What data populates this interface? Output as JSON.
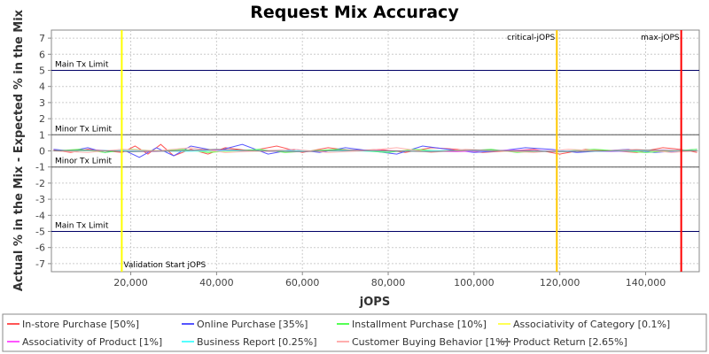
{
  "chart_data": {
    "type": "line",
    "title": "Request Mix Accuracy",
    "xlabel": "jOPS",
    "ylabel": "Actual % in the Mix - Expected % in the Mix",
    "xlim": [
      1500,
      152500
    ],
    "ylim": [
      -7.5,
      7.5
    ],
    "x_ticks": [
      20000,
      40000,
      60000,
      80000,
      100000,
      120000,
      140000
    ],
    "x_tick_labels": [
      "20,000",
      "40,000",
      "60,000",
      "80,000",
      "100,000",
      "120,000",
      "140,000"
    ],
    "y_ticks": [
      7,
      6,
      5,
      4,
      3,
      2,
      1,
      0,
      -1,
      -2,
      -3,
      -4,
      -5,
      -6,
      -7
    ],
    "y_tick_labels": [
      "7",
      "6",
      "5",
      "4",
      "3",
      "2",
      "1",
      "0",
      "-1",
      "-2",
      "-3",
      "-4",
      "-5",
      "-6",
      "-7"
    ],
    "grid": true,
    "legend_position": "bottom",
    "limit_lines": [
      {
        "label": "Main Tx Limit",
        "y": 5,
        "label_side": "above"
      },
      {
        "label": "Minor Tx Limit",
        "y": 1,
        "label_side": "above"
      },
      {
        "label": "Minor Tx Limit",
        "y": -1,
        "label_side": "above"
      },
      {
        "label": "Main Tx Limit",
        "y": -5,
        "label_side": "above"
      }
    ],
    "markers": [
      {
        "label": "Validation Start jOPS",
        "x": 17900,
        "color": "#ffff00",
        "label_pos": "bottom"
      },
      {
        "label": "critical-jOPS",
        "x": 119300,
        "color": "#ffc800",
        "label_pos": "top"
      },
      {
        "label": "max-jOPS",
        "x": 148300,
        "color": "#ff0000",
        "label_pos": "top"
      }
    ],
    "series": [
      {
        "name": "In-store Purchase [50%]",
        "color": "#ff5555",
        "x": [
          2000,
          6000,
          10000,
          14000,
          18000,
          21000,
          24000,
          27000,
          30000,
          34000,
          38000,
          42000,
          48000,
          54000,
          60000,
          66000,
          72000,
          78000,
          84000,
          90000,
          96000,
          102000,
          108000,
          114000,
          120000,
          126000,
          132000,
          138000,
          144000,
          148000,
          152000
        ],
        "y": [
          0.05,
          -0.1,
          0.1,
          0.0,
          -0.1,
          0.3,
          -0.2,
          0.4,
          -0.3,
          0.1,
          -0.2,
          0.2,
          0.0,
          0.3,
          -0.1,
          0.2,
          0.0,
          0.1,
          -0.1,
          0.2,
          0.1,
          -0.1,
          0.0,
          0.1,
          -0.2,
          0.1,
          0.0,
          -0.1,
          0.2,
          0.1,
          -0.1
        ]
      },
      {
        "name": "Online Purchase [35%]",
        "color": "#5555ff",
        "x": [
          2000,
          6000,
          10000,
          14000,
          18000,
          22000,
          26000,
          30000,
          34000,
          40000,
          46000,
          52000,
          58000,
          64000,
          70000,
          76000,
          82000,
          88000,
          94000,
          100000,
          106000,
          112000,
          118000,
          124000,
          130000,
          136000,
          142000,
          148000,
          152000
        ],
        "y": [
          0.1,
          0.0,
          0.2,
          -0.1,
          0.1,
          -0.4,
          0.2,
          -0.3,
          0.3,
          0.0,
          0.4,
          -0.2,
          0.1,
          -0.1,
          0.2,
          0.0,
          -0.2,
          0.3,
          0.1,
          -0.1,
          0.0,
          0.2,
          0.1,
          -0.1,
          0.0,
          0.1,
          -0.1,
          0.0,
          0.1
        ]
      },
      {
        "name": "Installment Purchase [10%]",
        "color": "#55ff55",
        "x": [
          2000,
          8000,
          14000,
          20000,
          26000,
          32000,
          38000,
          44000,
          50000,
          56000,
          62000,
          68000,
          74000,
          80000,
          86000,
          92000,
          98000,
          104000,
          110000,
          116000,
          122000,
          128000,
          134000,
          140000,
          146000,
          152000
        ],
        "y": [
          0.0,
          0.1,
          -0.1,
          0.1,
          0.0,
          0.1,
          -0.1,
          0.0,
          0.1,
          -0.1,
          0.0,
          0.1,
          0.0,
          -0.1,
          0.1,
          0.0,
          0.0,
          0.1,
          -0.1,
          0.0,
          0.0,
          0.1,
          0.0,
          -0.1,
          0.0,
          0.1
        ]
      },
      {
        "name": "Associativity of Category [0.1%]",
        "color": "#ffff55",
        "x": [
          2000,
          20000,
          40000,
          60000,
          80000,
          100000,
          120000,
          140000,
          152000
        ],
        "y": [
          0.0,
          0.02,
          -0.02,
          0.0,
          0.01,
          0.0,
          -0.01,
          0.0,
          0.0
        ]
      },
      {
        "name": "Associativity of Product [1%]",
        "color": "#ff55ff",
        "x": [
          2000,
          12000,
          24000,
          36000,
          48000,
          60000,
          72000,
          84000,
          96000,
          108000,
          120000,
          132000,
          144000,
          152000
        ],
        "y": [
          0.0,
          0.05,
          -0.05,
          0.05,
          0.0,
          -0.05,
          0.05,
          0.0,
          -0.05,
          0.05,
          0.0,
          -0.05,
          0.05,
          0.0
        ]
      },
      {
        "name": "Business Report [0.25%]",
        "color": "#55ffff",
        "x": [
          2000,
          16000,
          32000,
          48000,
          64000,
          80000,
          96000,
          112000,
          128000,
          144000,
          152000
        ],
        "y": [
          0.0,
          0.03,
          -0.03,
          0.02,
          0.0,
          -0.02,
          0.03,
          0.0,
          -0.03,
          0.02,
          0.0
        ]
      },
      {
        "name": "Customer Buying Behavior [1%]",
        "color": "#ffafaf",
        "x": [
          2000,
          10000,
          18000,
          26000,
          34000,
          42000,
          50000,
          58000,
          66000,
          74000,
          82000,
          90000,
          98000,
          106000,
          114000,
          122000,
          130000,
          138000,
          146000,
          152000
        ],
        "y": [
          0.0,
          -0.1,
          0.1,
          0.0,
          0.2,
          -0.1,
          0.0,
          0.1,
          -0.1,
          0.0,
          0.2,
          -0.1,
          0.1,
          0.0,
          -0.1,
          0.1,
          0.0,
          0.1,
          -0.1,
          0.0
        ]
      },
      {
        "name": "Product Return [2.65%]",
        "color": "#808080",
        "x": [
          2000,
          10000,
          20000,
          30000,
          40000,
          50000,
          60000,
          70000,
          80000,
          90000,
          100000,
          110000,
          120000,
          130000,
          140000,
          152000
        ],
        "y": [
          0.0,
          0.05,
          -0.05,
          0.0,
          0.1,
          0.0,
          -0.05,
          0.05,
          0.0,
          -0.05,
          0.05,
          0.0,
          -0.05,
          0.0,
          0.05,
          0.0
        ]
      }
    ]
  }
}
